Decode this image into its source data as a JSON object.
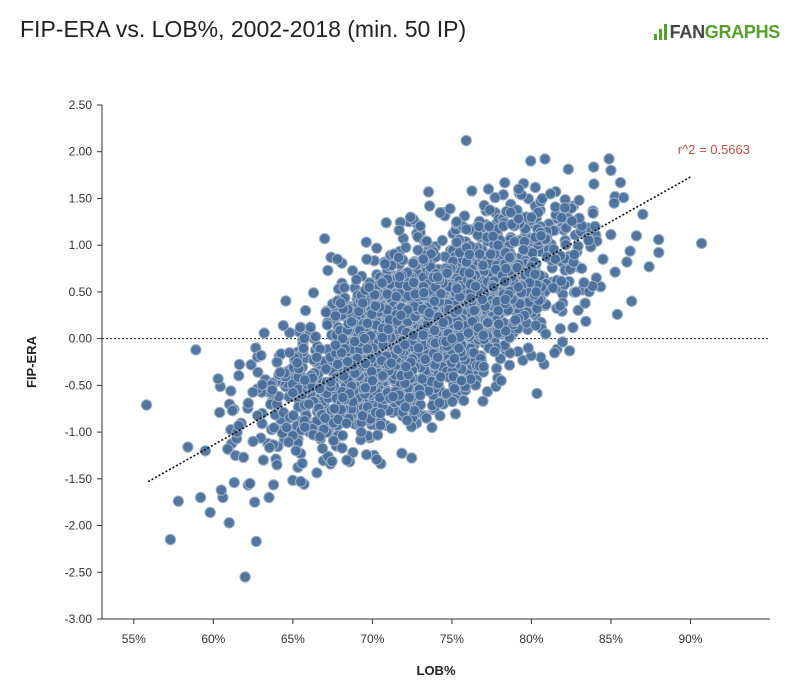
{
  "header": {
    "title": "FIP-ERA vs. LOB%, 2002-2018 (min. 50 IP)",
    "logo_prefix": "FAN",
    "logo_suffix": "GRAPHS"
  },
  "colors": {
    "point_fill": "#4a6f9a",
    "point_stroke": "#9eb2c8",
    "trend": "#111111",
    "annotation": "#c0504d",
    "brand": "#56a02c"
  },
  "chart_data": {
    "type": "scatter",
    "title": "FIP-ERA vs. LOB%, 2002-2018 (min. 50 IP)",
    "xlabel": "LOB%",
    "ylabel": "FIP-ERA",
    "xlim": [
      53,
      95
    ],
    "ylim": [
      -3.0,
      2.5
    ],
    "x_ticks": [
      "55%",
      "60%",
      "65%",
      "70%",
      "75%",
      "80%",
      "85%",
      "90%"
    ],
    "x_tick_values": [
      55,
      60,
      65,
      70,
      75,
      80,
      85,
      90
    ],
    "y_ticks": [
      "2.50",
      "2.00",
      "1.50",
      "1.00",
      "0.50",
      "0.00",
      "-0.50",
      "-1.00",
      "-1.50",
      "-2.00",
      "-2.50",
      "-3.00"
    ],
    "y_tick_values": [
      2.5,
      2.0,
      1.5,
      1.0,
      0.5,
      0.0,
      -0.5,
      -1.0,
      -1.5,
      -2.0,
      -2.5,
      -3.0
    ],
    "reference_line_y": 0,
    "trendline": {
      "x": [
        55.9,
        90.0
      ],
      "y": [
        -1.53,
        1.73
      ]
    },
    "annotation": "r^2 = 0.5663",
    "grid": false,
    "points": [
      [
        55.8,
        -0.71
      ],
      [
        57.3,
        -2.15
      ],
      [
        57.8,
        -1.74
      ],
      [
        58.9,
        -0.12
      ],
      [
        58.4,
        -1.16
      ],
      [
        59.2,
        -1.7
      ],
      [
        59.5,
        -1.2
      ],
      [
        59.8,
        -1.86
      ],
      [
        60.3,
        -0.43
      ],
      [
        60.4,
        -0.79
      ],
      [
        60.6,
        -1.7
      ],
      [
        60.5,
        -1.62
      ],
      [
        60.9,
        -1.18
      ],
      [
        61.0,
        -1.97
      ],
      [
        61.1,
        -0.56
      ],
      [
        61.2,
        -0.77
      ],
      [
        61.4,
        -1.25
      ],
      [
        61.5,
        -1.0
      ],
      [
        61.6,
        -0.93
      ],
      [
        61.9,
        -1.27
      ],
      [
        62.0,
        -2.55
      ],
      [
        62.2,
        -0.69
      ],
      [
        62.3,
        -1.55
      ],
      [
        62.5,
        -1.1
      ],
      [
        62.6,
        -1.75
      ],
      [
        62.7,
        -2.17
      ],
      [
        62.8,
        -0.36
      ],
      [
        63.0,
        -0.18
      ],
      [
        63.2,
        0.06
      ],
      [
        63.5,
        -1.7
      ],
      [
        63.7,
        -0.55
      ],
      [
        64.0,
        -1.35
      ],
      [
        64.2,
        -0.36
      ],
      [
        64.4,
        0.14
      ],
      [
        64.6,
        -0.95
      ],
      [
        64.8,
        -0.15
      ],
      [
        65.0,
        -0.58
      ],
      [
        65.2,
        -1.2
      ],
      [
        65.5,
        -1.53
      ],
      [
        65.8,
        0.3
      ],
      [
        66.0,
        -0.7
      ],
      [
        66.3,
        0.49
      ],
      [
        66.5,
        -0.2
      ],
      [
        66.7,
        -1.05
      ],
      [
        67.0,
        1.07
      ],
      [
        67.2,
        0.73
      ],
      [
        67.4,
        0.87
      ],
      [
        67.6,
        -0.75
      ],
      [
        67.8,
        0.85
      ],
      [
        68.0,
        0.38
      ],
      [
        68.2,
        -0.4
      ],
      [
        68.4,
        -1.3
      ],
      [
        68.7,
        0.18
      ],
      [
        69.0,
        0.63
      ],
      [
        69.3,
        -1.0
      ],
      [
        69.5,
        0.0
      ],
      [
        69.8,
        0.55
      ],
      [
        70.0,
        -0.45
      ],
      [
        70.2,
        0.35
      ],
      [
        70.5,
        -0.8
      ],
      [
        70.8,
        0.8
      ],
      [
        71.0,
        0.1
      ],
      [
        71.3,
        -0.62
      ],
      [
        71.5,
        0.45
      ],
      [
        71.8,
        0.25
      ],
      [
        72.1,
        -0.3
      ],
      [
        72.4,
        1.3
      ],
      [
        72.6,
        0.6
      ],
      [
        72.9,
        -0.1
      ],
      [
        73.2,
        0.85
      ],
      [
        73.4,
        -0.85
      ],
      [
        73.6,
        1.42
      ],
      [
        73.9,
        0.4
      ],
      [
        74.1,
        -0.2
      ],
      [
        74.4,
        1.05
      ],
      [
        74.7,
        0.7
      ],
      [
        75.0,
        0.0
      ],
      [
        75.3,
        1.25
      ],
      [
        75.6,
        -0.45
      ],
      [
        75.9,
        2.12
      ],
      [
        76.1,
        0.9
      ],
      [
        76.4,
        0.3
      ],
      [
        76.7,
        1.2
      ],
      [
        77.0,
        -0.3
      ],
      [
        77.3,
        1.6
      ],
      [
        77.6,
        0.55
      ],
      [
        77.9,
        1.0
      ],
      [
        78.1,
        -0.45
      ],
      [
        78.4,
        0.75
      ],
      [
        78.7,
        1.35
      ],
      [
        79.0,
        0.2
      ],
      [
        79.2,
        1.6
      ],
      [
        79.5,
        0.95
      ],
      [
        79.8,
        -0.1
      ],
      [
        80.0,
        1.3
      ],
      [
        80.3,
        0.5
      ],
      [
        80.6,
        1.1
      ],
      [
        80.9,
        0.05
      ],
      [
        81.2,
        1.55
      ],
      [
        81.5,
        0.85
      ],
      [
        81.8,
        0.35
      ],
      [
        82.1,
        1.4
      ],
      [
        82.4,
        -0.13
      ],
      [
        82.7,
        0.9
      ],
      [
        83.0,
        1.48
      ],
      [
        83.3,
        0.6
      ],
      [
        83.6,
        1.05
      ],
      [
        84.0,
        1.2
      ],
      [
        84.5,
        0.85
      ],
      [
        85.0,
        1.8
      ],
      [
        85.2,
        1.45
      ],
      [
        85.4,
        0.26
      ],
      [
        85.6,
        1.67
      ],
      [
        86.0,
        0.82
      ],
      [
        86.3,
        0.4
      ],
      [
        86.6,
        1.1
      ],
      [
        87.0,
        1.33
      ],
      [
        87.4,
        0.77
      ],
      [
        88.0,
        1.06
      ],
      [
        90.7,
        1.02
      ]
    ]
  }
}
